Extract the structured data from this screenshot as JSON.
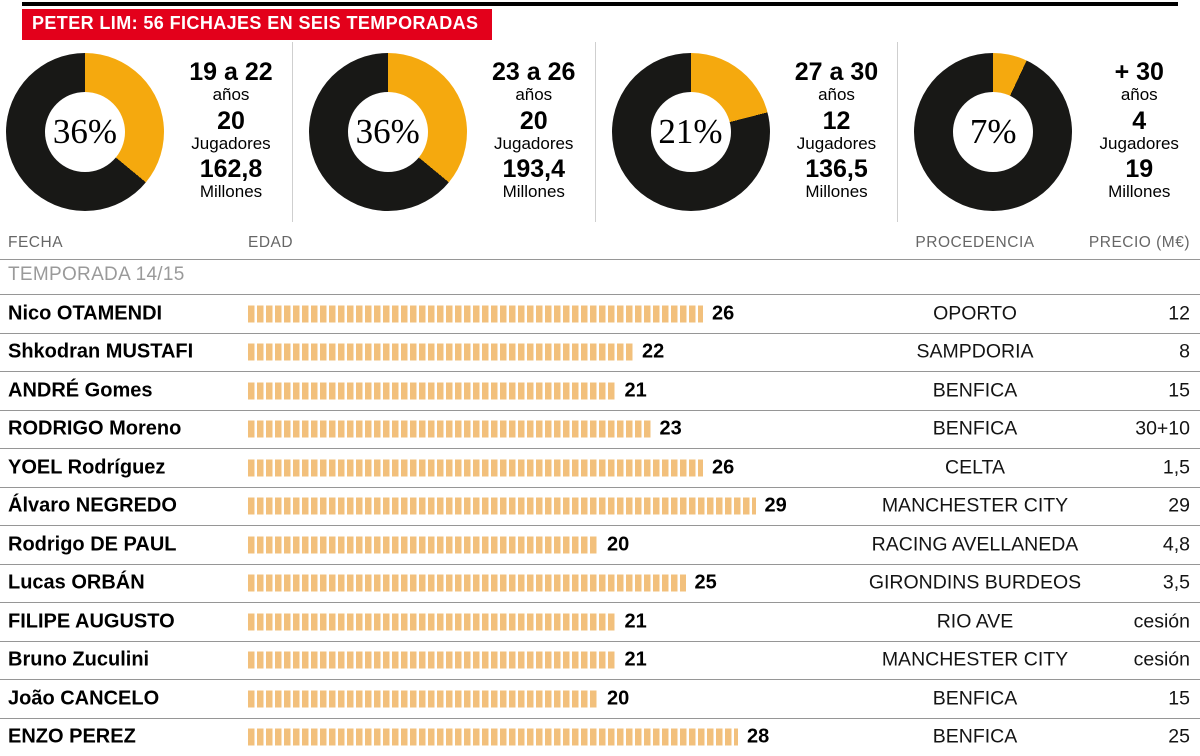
{
  "colors": {
    "banner_red": "#e3001b",
    "donut_orange": "#f5a90e",
    "donut_black": "#181816",
    "bar_orange": "#f2c07c"
  },
  "banner": {
    "title": "PETER LIM: 56 FICHAJES EN SEIS TEMPORADAS"
  },
  "donuts": [
    {
      "pct": 36,
      "pct_label": "36%",
      "age_range": "19 a 22",
      "age_unit": "años",
      "players": "20",
      "players_unit": "Jugadores",
      "millones": "162,8",
      "millones_unit": "Millones"
    },
    {
      "pct": 36,
      "pct_label": "36%",
      "age_range": "23 a 26",
      "age_unit": "años",
      "players": "20",
      "players_unit": "Jugadores",
      "millones": "193,4",
      "millones_unit": "Millones"
    },
    {
      "pct": 21,
      "pct_label": "21%",
      "age_range": "27 a 30",
      "age_unit": "años",
      "players": "12",
      "players_unit": "Jugadores",
      "millones": "136,5",
      "millones_unit": "Millones"
    },
    {
      "pct": 7,
      "pct_label": "7%",
      "age_range": "+ 30",
      "age_unit": "años",
      "players": "4",
      "players_unit": "Jugadores",
      "millones": "19",
      "millones_unit": "Millones"
    }
  ],
  "table": {
    "columns": {
      "fecha": "FECHA",
      "edad": "EDAD",
      "procedencia": "PROCEDENCIA",
      "precio": "PRECIO (M€)"
    },
    "season": "TEMPORADA 14/15",
    "rows": [
      {
        "name": "Nico OTAMENDI",
        "age": 26,
        "club": "OPORTO",
        "price": "12"
      },
      {
        "name": "Shkodran MUSTAFI",
        "age": 22,
        "club": "SAMPDORIA",
        "price": "8"
      },
      {
        "name": "ANDRÉ Gomes",
        "age": 21,
        "club": "BENFICA",
        "price": "15"
      },
      {
        "name": "RODRIGO Moreno",
        "age": 23,
        "club": "BENFICA",
        "price": "30+10"
      },
      {
        "name": "YOEL Rodríguez",
        "age": 26,
        "club": "CELTA",
        "price": "1,5"
      },
      {
        "name": "Álvaro NEGREDO",
        "age": 29,
        "club": "MANCHESTER CITY",
        "price": "29"
      },
      {
        "name": "Rodrigo DE PAUL",
        "age": 20,
        "club": "RACING AVELLANEDA",
        "price": "4,8"
      },
      {
        "name": "Lucas ORBÁN",
        "age": 25,
        "club": "GIRONDINS BURDEOS",
        "price": "3,5"
      },
      {
        "name": "FILIPE AUGUSTO",
        "age": 21,
        "club": "RIO AVE",
        "price": "cesión"
      },
      {
        "name": "Bruno Zuculini",
        "age": 21,
        "club": "MANCHESTER CITY",
        "price": "cesión"
      },
      {
        "name": "João CANCELO",
        "age": 20,
        "club": "BENFICA",
        "price": "15"
      },
      {
        "name": "ENZO PEREZ",
        "age": 28,
        "club": "BENFICA",
        "price": "25"
      }
    ]
  },
  "chart_data": [
    {
      "type": "pie",
      "title": "PETER LIM: 56 FICHAJES EN SEIS TEMPORADAS",
      "legend_position": "right-of-each-donut",
      "series": [
        {
          "label": "19 a 22 años",
          "percent": 36,
          "jugadores": 20,
          "millones": 162.8
        },
        {
          "label": "23 a 26 años",
          "percent": 36,
          "jugadores": 20,
          "millones": 193.4
        },
        {
          "label": "27 a 30 años",
          "percent": 21,
          "jugadores": 12,
          "millones": 136.5
        },
        {
          "label": "+ 30 años",
          "percent": 7,
          "jugadores": 4,
          "millones": 19
        }
      ]
    },
    {
      "type": "bar",
      "orientation": "horizontal",
      "title": "TEMPORADA 14/15",
      "xlabel": "EDAD",
      "categories": [
        "Nico OTAMENDI",
        "Shkodran MUSTAFI",
        "ANDRÉ Gomes",
        "RODRIGO Moreno",
        "YOEL Rodríguez",
        "Álvaro NEGREDO",
        "Rodrigo DE PAUL",
        "Lucas ORBÁN",
        "FILIPE AUGUSTO",
        "Bruno Zuculini",
        "João CANCELO",
        "ENZO PEREZ"
      ],
      "values": [
        26,
        22,
        21,
        23,
        26,
        29,
        20,
        25,
        21,
        21,
        20,
        28
      ],
      "procedencia": [
        "OPORTO",
        "SAMPDORIA",
        "BENFICA",
        "BENFICA",
        "CELTA",
        "MANCHESTER CITY",
        "RACING AVELLANEDA",
        "GIRONDINS BURDEOS",
        "RIO AVE",
        "MANCHESTER CITY",
        "BENFICA",
        "BENFICA"
      ],
      "precio_meur": [
        "12",
        "8",
        "15",
        "30+10",
        "1,5",
        "29",
        "4,8",
        "3,5",
        "cesión",
        "cesión",
        "15",
        "25"
      ]
    }
  ]
}
